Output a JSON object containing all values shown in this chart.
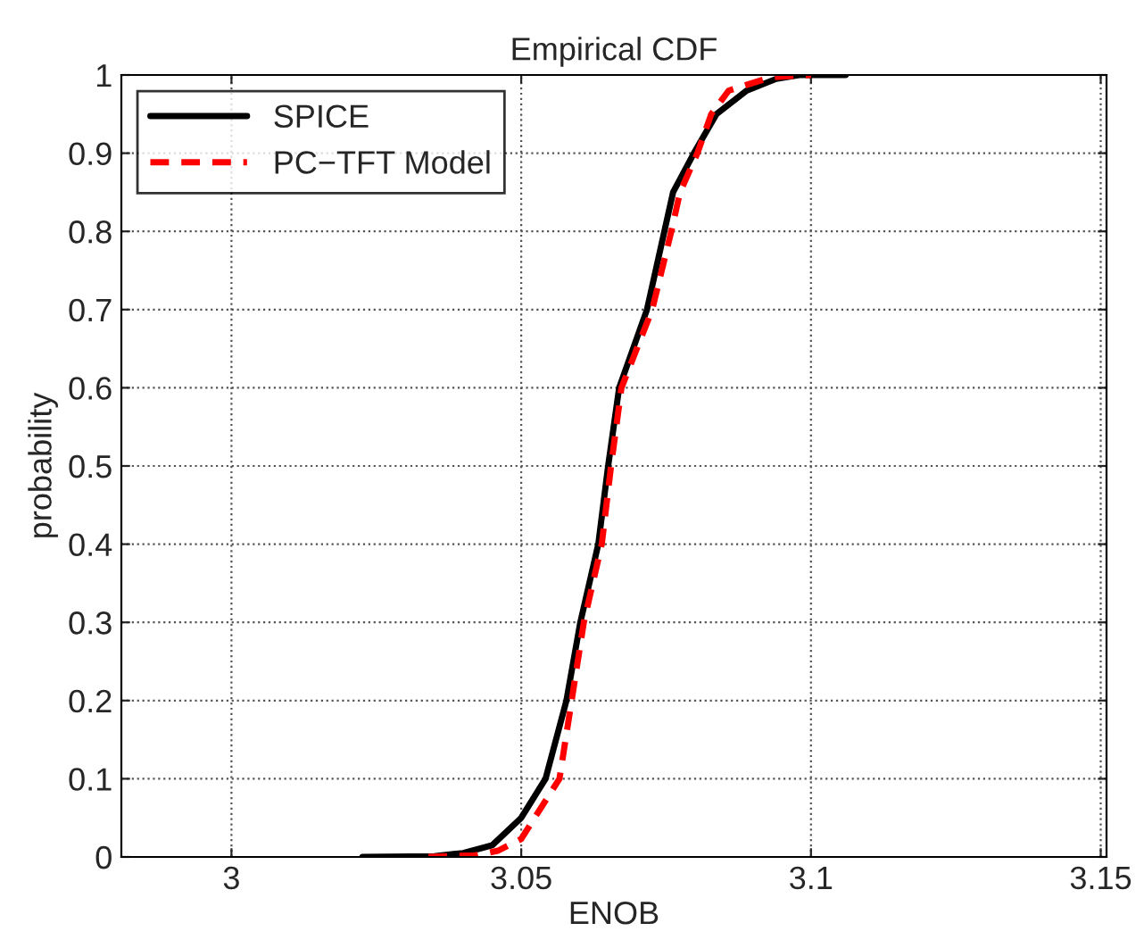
{
  "chart_data": {
    "type": "line",
    "title": "Empirical CDF",
    "xlabel": "ENOB",
    "ylabel": "probability",
    "xlim": [
      2.981,
      3.151
    ],
    "ylim": [
      0,
      1
    ],
    "xticks": [
      3,
      3.05,
      3.1,
      3.15
    ],
    "yticks": [
      0,
      0.1,
      0.2,
      0.3,
      0.4,
      0.5,
      0.6,
      0.7,
      0.8,
      0.9,
      1
    ],
    "grid": true,
    "legend": "top left",
    "series": [
      {
        "name": "SPICE",
        "color": "#000000",
        "line_style": "solid",
        "x": [
          3.0226,
          3.035,
          3.04,
          3.045,
          3.05,
          3.0542,
          3.0578,
          3.0602,
          3.0633,
          3.065,
          3.0669,
          3.0717,
          3.0747,
          3.0762,
          3.0798,
          3.0837,
          3.0889,
          3.094,
          3.098,
          3.106
        ],
        "values": [
          0,
          0.001,
          0.005,
          0.015,
          0.05,
          0.1,
          0.2,
          0.3,
          0.4,
          0.5,
          0.6,
          0.7,
          0.8,
          0.85,
          0.9,
          0.95,
          0.98,
          0.995,
          1,
          1
        ]
      },
      {
        "name": "PC−TFT Model",
        "color": "#ff0000",
        "line_style": "dashed",
        "x": [
          3.034,
          3.042,
          3.046,
          3.05,
          3.0566,
          3.0587,
          3.0608,
          3.0639,
          3.0655,
          3.0673,
          3.0726,
          3.0759,
          3.0774,
          3.0804,
          3.0828,
          3.0858,
          3.093,
          3.1
        ],
        "values": [
          0,
          0.002,
          0.008,
          0.023,
          0.1,
          0.2,
          0.3,
          0.4,
          0.5,
          0.6,
          0.7,
          0.8,
          0.85,
          0.9,
          0.95,
          0.98,
          0.997,
          1
        ]
      }
    ]
  }
}
